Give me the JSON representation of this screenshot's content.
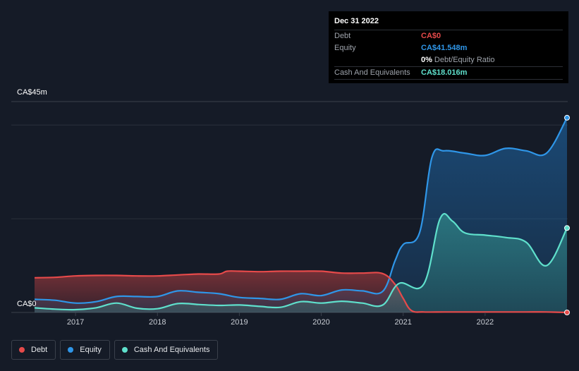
{
  "tooltip": {
    "date": "Dec 31 2022",
    "rows": [
      {
        "label": "Debt",
        "value": "CA$0",
        "color": "#e64a4a"
      },
      {
        "label": "Equity",
        "value": "CA$41.548m",
        "color": "#2f96e8"
      },
      {
        "ratio_pct": "0%",
        "ratio_label": "Debt/Equity Ratio"
      },
      {
        "label": "Cash And Equivalents",
        "value": "CA$18.016m",
        "color": "#5fe0cc"
      }
    ]
  },
  "legend": [
    {
      "name": "Debt",
      "color": "#e64a4a"
    },
    {
      "name": "Equity",
      "color": "#2f96e8"
    },
    {
      "name": "Cash And Equivalents",
      "color": "#5fe0cc"
    }
  ],
  "chart_data": {
    "type": "area",
    "title": "",
    "xlabel": "",
    "ylabel": "",
    "y_top_label": "CA$45m",
    "y_zero_label": "CA$0",
    "ylim": [
      0,
      45
    ],
    "xlim": [
      2016.5,
      2023.0
    ],
    "x_ticks": [
      2017,
      2018,
      2019,
      2020,
      2021,
      2022
    ],
    "x_tick_labels": [
      "2017",
      "2018",
      "2019",
      "2020",
      "2021",
      "2022"
    ],
    "series": [
      {
        "name": "Debt",
        "color": "#e64a4a",
        "x": [
          2016.5,
          2016.75,
          2017.0,
          2017.25,
          2017.5,
          2017.75,
          2018.0,
          2018.25,
          2018.5,
          2018.75,
          2018.85,
          2019.0,
          2019.25,
          2019.5,
          2019.75,
          2020.0,
          2020.25,
          2020.5,
          2020.75,
          2020.9,
          2021.0,
          2021.1,
          2021.25,
          2021.5,
          2021.75,
          2022.0,
          2022.25,
          2022.5,
          2022.75,
          2023.0
        ],
        "values": [
          7.4,
          7.5,
          7.8,
          7.9,
          7.9,
          7.8,
          7.8,
          8.0,
          8.2,
          8.2,
          8.8,
          8.8,
          8.7,
          8.8,
          8.8,
          8.8,
          8.4,
          8.4,
          8.3,
          6.0,
          3.0,
          0.4,
          0.1,
          0.1,
          0.1,
          0.1,
          0.1,
          0.1,
          0.1,
          0.0
        ]
      },
      {
        "name": "Equity",
        "color": "#2f96e8",
        "x": [
          2016.5,
          2016.75,
          2017.0,
          2017.25,
          2017.5,
          2017.75,
          2018.0,
          2018.25,
          2018.5,
          2018.75,
          2019.0,
          2019.25,
          2019.5,
          2019.75,
          2020.0,
          2020.25,
          2020.5,
          2020.75,
          2020.9,
          2021.0,
          2021.2,
          2021.35,
          2021.5,
          2021.75,
          2022.0,
          2022.25,
          2022.5,
          2022.75,
          2023.0
        ],
        "values": [
          2.8,
          2.6,
          2.0,
          2.3,
          3.4,
          3.4,
          3.4,
          4.6,
          4.3,
          4.0,
          3.2,
          3.0,
          2.8,
          4.0,
          3.6,
          4.8,
          4.6,
          4.5,
          11.0,
          14.5,
          17.0,
          33.0,
          34.5,
          34.0,
          33.5,
          35.0,
          34.5,
          34.0,
          41.548
        ]
      },
      {
        "name": "Cash And Equivalents",
        "color": "#5fe0cc",
        "x": [
          2016.5,
          2016.75,
          2017.0,
          2017.25,
          2017.5,
          2017.75,
          2018.0,
          2018.25,
          2018.5,
          2018.75,
          2019.0,
          2019.25,
          2019.5,
          2019.75,
          2020.0,
          2020.25,
          2020.5,
          2020.75,
          2020.95,
          2021.25,
          2021.45,
          2021.6,
          2021.75,
          2022.0,
          2022.25,
          2022.5,
          2022.75,
          2023.0
        ],
        "values": [
          1.0,
          0.7,
          0.6,
          1.0,
          2.0,
          0.9,
          0.8,
          1.9,
          1.7,
          1.5,
          1.6,
          1.3,
          1.1,
          2.3,
          2.0,
          2.4,
          2.0,
          1.6,
          6.2,
          6.0,
          20.0,
          19.5,
          17.0,
          16.5,
          16.0,
          15.0,
          10.0,
          18.016
        ]
      }
    ]
  }
}
